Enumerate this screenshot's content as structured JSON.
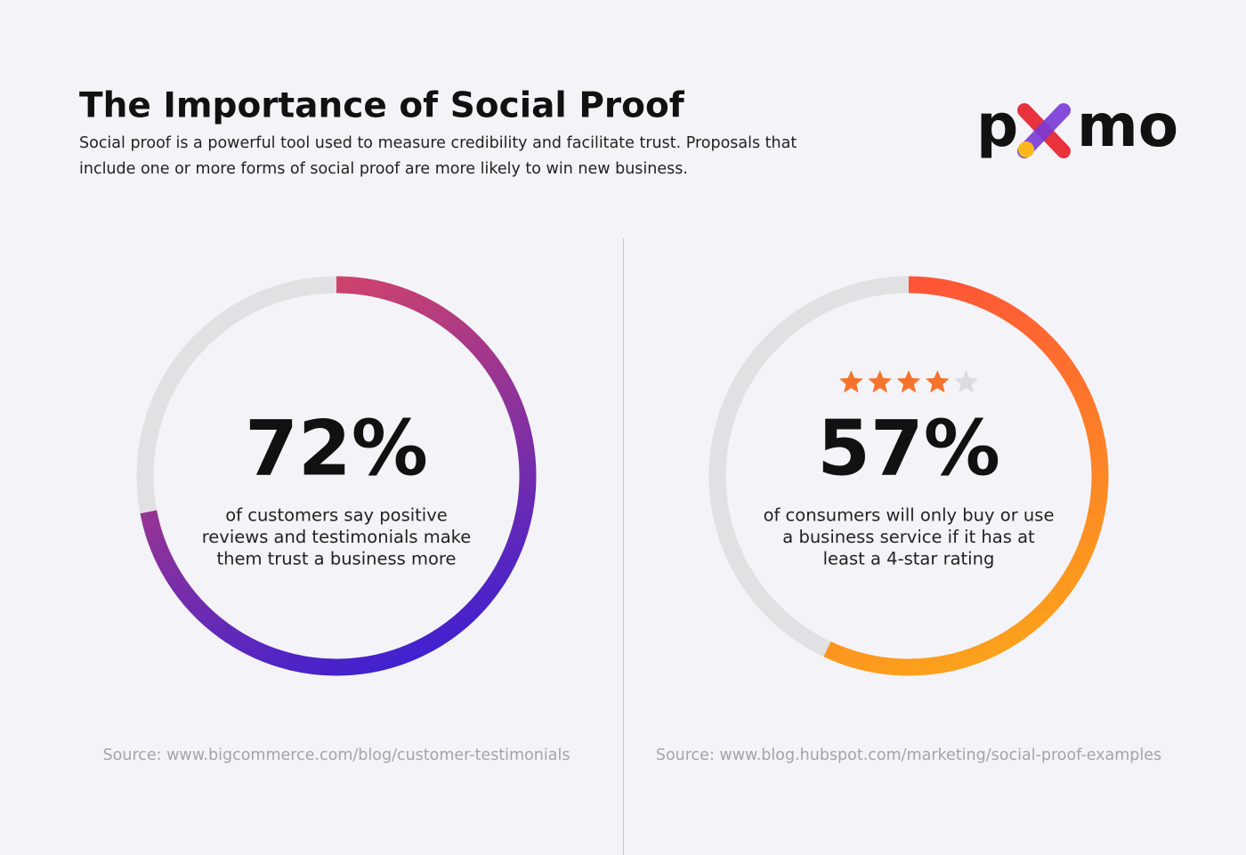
{
  "header": {
    "title": "The Importance of Social Proof",
    "subtitle_lines": [
      "Social proof is a powerful tool used to measure credibility and facilitate trust. Proposals that",
      "include one or more forms of social proof are more likely to win new business."
    ],
    "logo": [
      "p",
      "mo"
    ]
  },
  "chart_data": [
    {
      "type": "ring",
      "values": [
        72
      ],
      "value_labels": [
        "72%"
      ],
      "max": 100,
      "colors": [
        "#d2436a",
        "#3a1fd4"
      ],
      "track_color": "#e1e1e4",
      "caption_lines": [
        "of customers say positive",
        "reviews and testimonials make",
        "them trust a business more"
      ],
      "source": "Source: www.bigcommerce.com/blog/customer-testimonials"
    },
    {
      "type": "ring",
      "values": [
        57
      ],
      "value_labels": [
        "57%"
      ],
      "max": 100,
      "colors": [
        "#ff5238",
        "#fba51a"
      ],
      "track_color": "#e1e1e4",
      "rating": 4,
      "rating_max": 5,
      "star_color": "#f5732d",
      "star_empty_color": "#dcdcdf",
      "caption_lines": [
        "of consumers will only buy or use",
        "a business service if it has at",
        "least a 4-star rating"
      ],
      "source": "Source: www.blog.hubspot.com/marketing/social-proof-examples"
    }
  ]
}
